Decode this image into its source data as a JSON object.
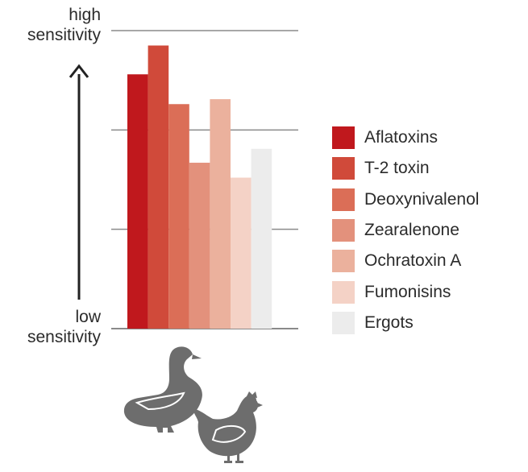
{
  "chart_data": {
    "type": "bar",
    "title": "",
    "xlabel": "",
    "ylabel": "",
    "y_axis": {
      "high_label": "high\nsensitivity",
      "low_label": "low\nsensitivity"
    },
    "ylim": [
      0,
      3
    ],
    "grid": true,
    "legend_position": "right",
    "categories": [
      "Aflatoxins",
      "T-2 toxin",
      "Deoxynivalenol",
      "Zearalenone",
      "Ochratoxin A",
      "Fumonisins",
      "Ergots"
    ],
    "values": [
      2.56,
      2.85,
      2.26,
      1.67,
      2.31,
      1.52,
      1.81
    ],
    "colors": [
      "#c0181d",
      "#d04a3a",
      "#db6e57",
      "#e3917c",
      "#ebb19d",
      "#f4d2c6",
      "#ececec"
    ],
    "x_group_icons": [
      "goose-icon",
      "chicken-icon"
    ]
  }
}
